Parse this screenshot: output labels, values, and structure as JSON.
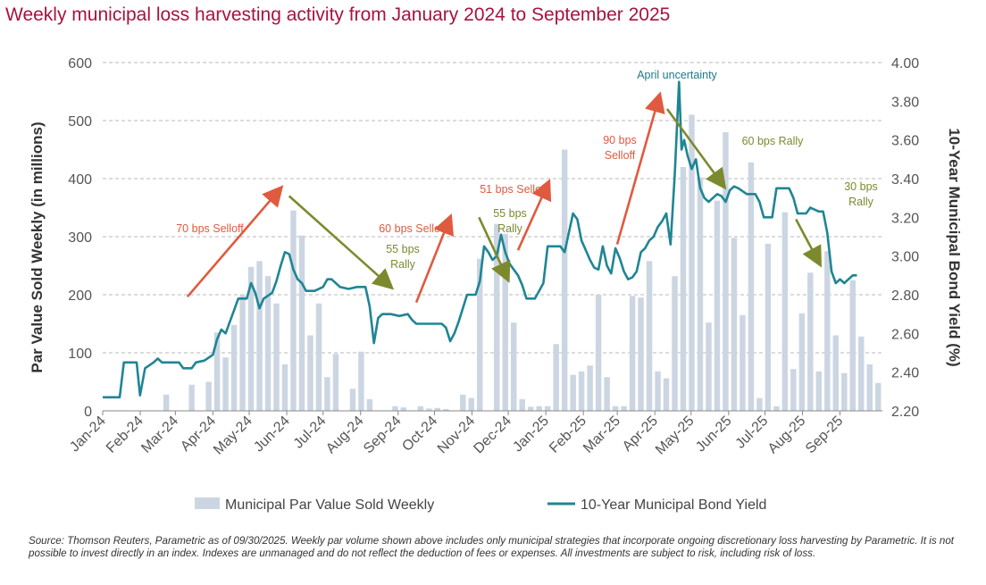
{
  "title": "Weekly municipal loss harvesting activity from January 2024 to September 2025",
  "source_note": "Source: Thomson Reuters, Parametric as of 09/30/2025. Weekly par volume shown above includes only municipal strategies that incorporate ongoing discretionary loss harvesting by Parametric. It is not possible to invest directly in an index. Indexes are unmanaged and do not reflect the deduction of fees or expenses. All investments are subject to risk, including risk of loss.",
  "colors": {
    "title": "#a8123e",
    "bar": "#ccd6e2",
    "line": "#1f8594",
    "selloff": "#e05a3f",
    "rally": "#7c8a2d",
    "peak_label": "#1f7a86"
  },
  "chart_data": {
    "type": "bar+line",
    "start_week": "2024-01-01",
    "xlabel": "",
    "ylabel": "Par Value Sold Weekly (in millions)",
    "y2label": "10-Year Municipal Bond Yield (%)",
    "ylim": [
      0,
      600
    ],
    "y2lim": [
      2.2,
      4.0
    ],
    "y_ticks": [
      "0",
      "100",
      "200",
      "300",
      "400",
      "500",
      "600"
    ],
    "y2_ticks": [
      "2.20",
      "2.40",
      "2.60",
      "2.80",
      "3.00",
      "3.20",
      "3.40",
      "3.60",
      "3.80",
      "4.00"
    ],
    "x_tick_labels": [
      "Jan-24",
      "Feb-24",
      "Mar-24",
      "Apr-24",
      "May-24",
      "Jun-24",
      "Jul-24",
      "Aug-24",
      "Sep-24",
      "Oct-24",
      "Nov-24",
      "Dec-24",
      "Jan-25",
      "Feb-25",
      "Mar-25",
      "Apr-25",
      "May-25",
      "Jun-25",
      "Jul-25",
      "Aug-25",
      "Sep-25"
    ],
    "grid": "horizontal dashed",
    "legend": [
      "Municipal Par Value Sold Weekly",
      "10-Year Municipal Bond Yield"
    ],
    "legend_position": "bottom",
    "series": [
      {
        "name": "Municipal Par Value Sold Weekly",
        "type": "bar",
        "weeks": [
          7,
          10,
          12,
          13,
          14,
          15,
          16,
          17,
          18,
          19,
          20,
          21,
          22,
          23,
          24,
          25,
          26,
          27,
          29,
          30,
          31,
          34,
          35,
          37,
          38,
          39,
          40,
          42,
          43,
          44,
          46,
          47,
          48,
          49,
          50,
          51,
          52,
          53,
          54,
          55,
          56,
          57,
          58,
          59,
          60,
          61,
          62,
          63,
          64,
          65,
          66,
          67,
          68,
          69,
          70,
          71,
          72,
          73,
          74,
          75,
          76,
          77,
          78,
          79,
          80,
          81,
          82,
          83,
          84,
          85,
          86,
          87,
          88,
          89,
          90,
          91
        ],
        "values": [
          28,
          45,
          50,
          135,
          92,
          148,
          200,
          248,
          258,
          232,
          185,
          80,
          345,
          302,
          130,
          185,
          58,
          98,
          38,
          102,
          20,
          8,
          6,
          8,
          4,
          5,
          3,
          28,
          22,
          262,
          322,
          305,
          152,
          20,
          7,
          8,
          8,
          115,
          450,
          62,
          68,
          78,
          200,
          58,
          8,
          8,
          198,
          195,
          258,
          68,
          56,
          232,
          420,
          510,
          402,
          152,
          362,
          480,
          298,
          165,
          428,
          22,
          288,
          8,
          342,
          72,
          168,
          238,
          68,
          275,
          130,
          65,
          225,
          128,
          80,
          48
        ]
      },
      {
        "name": "10-Year Municipal Bond Yield",
        "type": "line",
        "points": [
          [
            0,
            2.27
          ],
          [
            2,
            2.27
          ],
          [
            2.5,
            2.45
          ],
          [
            4,
            2.45
          ],
          [
            4.4,
            2.28
          ],
          [
            5,
            2.42
          ],
          [
            6,
            2.45
          ],
          [
            6.5,
            2.47
          ],
          [
            7,
            2.45
          ],
          [
            8,
            2.45
          ],
          [
            9,
            2.45
          ],
          [
            9.5,
            2.42
          ],
          [
            10.5,
            2.42
          ],
          [
            11,
            2.45
          ],
          [
            12,
            2.46
          ],
          [
            13,
            2.49
          ],
          [
            13.5,
            2.57
          ],
          [
            14,
            2.62
          ],
          [
            14.5,
            2.6
          ],
          [
            15.5,
            2.72
          ],
          [
            16,
            2.78
          ],
          [
            17,
            2.78
          ],
          [
            17.5,
            2.86
          ],
          [
            18,
            2.81
          ],
          [
            18.5,
            2.73
          ],
          [
            19,
            2.78
          ],
          [
            20,
            2.81
          ],
          [
            20.5,
            2.87
          ],
          [
            21,
            2.95
          ],
          [
            21.5,
            3.02
          ],
          [
            22,
            3.01
          ],
          [
            22.5,
            2.93
          ],
          [
            23,
            2.88
          ],
          [
            23.5,
            2.86
          ],
          [
            24,
            2.82
          ],
          [
            25,
            2.82
          ],
          [
            26,
            2.84
          ],
          [
            26.5,
            2.88
          ],
          [
            27,
            2.88
          ],
          [
            27.5,
            2.86
          ],
          [
            28,
            2.84
          ],
          [
            29,
            2.83
          ],
          [
            30,
            2.84
          ],
          [
            31,
            2.84
          ],
          [
            31.5,
            2.74
          ],
          [
            32,
            2.55
          ],
          [
            32.5,
            2.68
          ],
          [
            33,
            2.7
          ],
          [
            34,
            2.7
          ],
          [
            35,
            2.69
          ],
          [
            36,
            2.7
          ],
          [
            36.5,
            2.67
          ],
          [
            37,
            2.65
          ],
          [
            38,
            2.65
          ],
          [
            39,
            2.65
          ],
          [
            40,
            2.65
          ],
          [
            40.5,
            2.63
          ],
          [
            41,
            2.56
          ],
          [
            41.5,
            2.6
          ],
          [
            42,
            2.66
          ],
          [
            43,
            2.8
          ],
          [
            44,
            2.8
          ],
          [
            44.5,
            2.87
          ],
          [
            45,
            3.05
          ],
          [
            45.5,
            3.02
          ],
          [
            46,
            2.98
          ],
          [
            46.5,
            3.0
          ],
          [
            47,
            3.11
          ],
          [
            47.5,
            3.02
          ],
          [
            48,
            2.96
          ],
          [
            48.5,
            2.93
          ],
          [
            49,
            2.9
          ],
          [
            49.5,
            2.85
          ],
          [
            50,
            2.78
          ],
          [
            51,
            2.78
          ],
          [
            51.5,
            2.82
          ],
          [
            52,
            2.86
          ],
          [
            52.5,
            3.05
          ],
          [
            53,
            3.05
          ],
          [
            54,
            3.05
          ],
          [
            54.5,
            3.02
          ],
          [
            55,
            3.12
          ],
          [
            55.5,
            3.22
          ],
          [
            56,
            3.19
          ],
          [
            56.5,
            3.08
          ],
          [
            57,
            3.03
          ],
          [
            57.5,
            2.98
          ],
          [
            58,
            2.94
          ],
          [
            58.5,
            2.93
          ],
          [
            59,
            3.05
          ],
          [
            59.5,
            2.95
          ],
          [
            60,
            2.91
          ],
          [
            60.5,
            3.04
          ],
          [
            61,
            2.99
          ],
          [
            61.5,
            2.92
          ],
          [
            62,
            2.88
          ],
          [
            62.5,
            2.89
          ],
          [
            63,
            2.92
          ],
          [
            63.5,
            3.02
          ],
          [
            64,
            3.04
          ],
          [
            64.5,
            3.08
          ],
          [
            65,
            3.1
          ],
          [
            65.5,
            3.15
          ],
          [
            66,
            3.18
          ],
          [
            66.5,
            3.22
          ],
          [
            67,
            3.06
          ],
          [
            67.5,
            3.42
          ],
          [
            68,
            3.9
          ],
          [
            68.3,
            3.55
          ],
          [
            68.6,
            3.6
          ],
          [
            69,
            3.52
          ],
          [
            69.5,
            3.45
          ],
          [
            70,
            3.5
          ],
          [
            70.5,
            3.35
          ],
          [
            71,
            3.3
          ],
          [
            71.5,
            3.28
          ],
          [
            72,
            3.3
          ],
          [
            72.5,
            3.32
          ],
          [
            73,
            3.31
          ],
          [
            73.5,
            3.28
          ],
          [
            74,
            3.34
          ],
          [
            74.5,
            3.36
          ],
          [
            75,
            3.35
          ],
          [
            76,
            3.32
          ],
          [
            77,
            3.32
          ],
          [
            77.5,
            3.28
          ],
          [
            78,
            3.2
          ],
          [
            79,
            3.2
          ],
          [
            79.5,
            3.35
          ],
          [
            80,
            3.35
          ],
          [
            81,
            3.35
          ],
          [
            81.5,
            3.3
          ],
          [
            82,
            3.22
          ],
          [
            83,
            3.22
          ],
          [
            83.5,
            3.25
          ],
          [
            84,
            3.24
          ],
          [
            84.5,
            3.23
          ],
          [
            85,
            3.23
          ],
          [
            85.5,
            3.12
          ],
          [
            86,
            2.92
          ],
          [
            86.5,
            2.86
          ],
          [
            87,
            2.88
          ],
          [
            87.5,
            2.86
          ],
          [
            88,
            2.88
          ],
          [
            88.5,
            2.9
          ],
          [
            89,
            2.9
          ]
        ]
      }
    ],
    "annotations": [
      {
        "text": [
          "70 bps Selloff"
        ],
        "kind": "selloff",
        "arrow_from": [
          10,
          2.79
        ],
        "arrow_to": [
          21,
          3.35
        ]
      },
      {
        "text": [
          "55 bps",
          "Rally"
        ],
        "kind": "rally",
        "arrow_from": [
          22,
          3.31
        ],
        "arrow_to": [
          34,
          2.84
        ]
      },
      {
        "text": [
          "60 bps Selloff"
        ],
        "kind": "selloff",
        "arrow_from": [
          37,
          2.76
        ],
        "arrow_to": [
          41,
          3.2
        ]
      },
      {
        "text": [
          "51 bps Selloff"
        ],
        "kind": "selloff",
        "arrow_from": [
          49,
          3.03
        ],
        "arrow_to": [
          52.6,
          3.38
        ]
      },
      {
        "text": [
          "55 bps",
          "Rally"
        ],
        "kind": "rally",
        "arrow_from": [
          44.4,
          3.2
        ],
        "arrow_to": [
          47.8,
          2.88
        ]
      },
      {
        "text": [
          "90 bps",
          "Selloff"
        ],
        "kind": "selloff",
        "arrow_from": [
          60.7,
          3.06
        ],
        "arrow_to": [
          65.7,
          3.83
        ]
      },
      {
        "text": [
          "April uncertainty"
        ],
        "kind": "peak",
        "label_at": [
          64.5,
          3.91
        ]
      },
      {
        "text": [
          "60 bps Rally"
        ],
        "kind": "rally",
        "arrow_from": [
          66.6,
          3.76
        ],
        "arrow_to": [
          73.3,
          3.36
        ]
      },
      {
        "text": [
          "30 bps",
          "Rally"
        ],
        "kind": "rally",
        "arrow_from": [
          81.8,
          3.19
        ],
        "arrow_to": [
          84.6,
          2.96
        ]
      }
    ]
  }
}
